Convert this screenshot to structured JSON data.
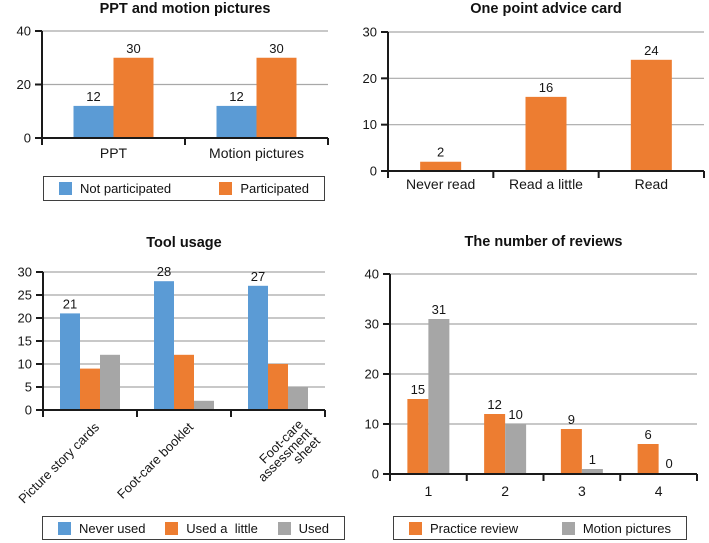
{
  "colors": {
    "blue": "#5B9BD5",
    "orange": "#ED7D31",
    "gray": "#A6A6A6",
    "grid": "#A8A8A8",
    "axis": "#1a1a1a",
    "text": "#161616",
    "legend_border": "#3f3f3f",
    "background": "#ffffff"
  },
  "chart_data": [
    {
      "type": "bar",
      "title": "PPT and motion pictures",
      "categories": [
        "PPT",
        "Motion pictures"
      ],
      "series": [
        {
          "name": "Not participated",
          "color": "#5B9BD5",
          "values": [
            12,
            12
          ],
          "value_labels": true
        },
        {
          "name": "Participated",
          "color": "#ED7D31",
          "values": [
            30,
            30
          ],
          "value_labels": true
        }
      ],
      "ylim": [
        0,
        40
      ],
      "yticks": [
        0,
        20,
        40
      ],
      "grid": true,
      "legend": true,
      "legend_position": "bottom"
    },
    {
      "type": "bar",
      "title": "One point advice card",
      "categories": [
        "Never read",
        "Read a little",
        "Read"
      ],
      "series": [
        {
          "name": "",
          "color": "#ED7D31",
          "values": [
            2,
            16,
            24
          ],
          "value_labels": true
        }
      ],
      "ylim": [
        0,
        30
      ],
      "yticks": [
        0,
        10,
        20,
        30
      ],
      "grid": true,
      "legend": false
    },
    {
      "type": "bar",
      "title": "Tool usage",
      "categories": [
        "Picture story cards",
        "Foot-care booklet",
        "Foot-care assessment sheet"
      ],
      "category_label_lines": [
        [
          "Picture story cards"
        ],
        [
          "Foot-care booklet"
        ],
        [
          "Foot-care",
          "assessment",
          "sheet"
        ]
      ],
      "series": [
        {
          "name": "Never used",
          "color": "#5B9BD5",
          "values": [
            21,
            28,
            27
          ],
          "value_labels": true
        },
        {
          "name": "Used a  little",
          "color": "#ED7D31",
          "values": [
            9,
            12,
            10
          ],
          "value_labels": false
        },
        {
          "name": "Used",
          "color": "#A6A6A6",
          "values": [
            12,
            2,
            5
          ],
          "value_labels": false
        }
      ],
      "ylim": [
        0,
        30
      ],
      "yticks": [
        0,
        5,
        10,
        15,
        20,
        25,
        30
      ],
      "grid": true,
      "legend": true,
      "legend_position": "bottom"
    },
    {
      "type": "bar",
      "title": "The number of reviews",
      "categories": [
        "1",
        "2",
        "3",
        "4"
      ],
      "series": [
        {
          "name": "Practice review",
          "color": "#ED7D31",
          "values": [
            15,
            12,
            9,
            6
          ],
          "value_labels": true
        },
        {
          "name": "Motion pictures",
          "color": "#A6A6A6",
          "values": [
            31,
            10,
            1,
            0
          ],
          "value_labels": true
        }
      ],
      "ylim": [
        0,
        40
      ],
      "yticks": [
        0,
        10,
        20,
        30,
        40
      ],
      "grid": true,
      "legend": true,
      "legend_position": "bottom"
    }
  ]
}
